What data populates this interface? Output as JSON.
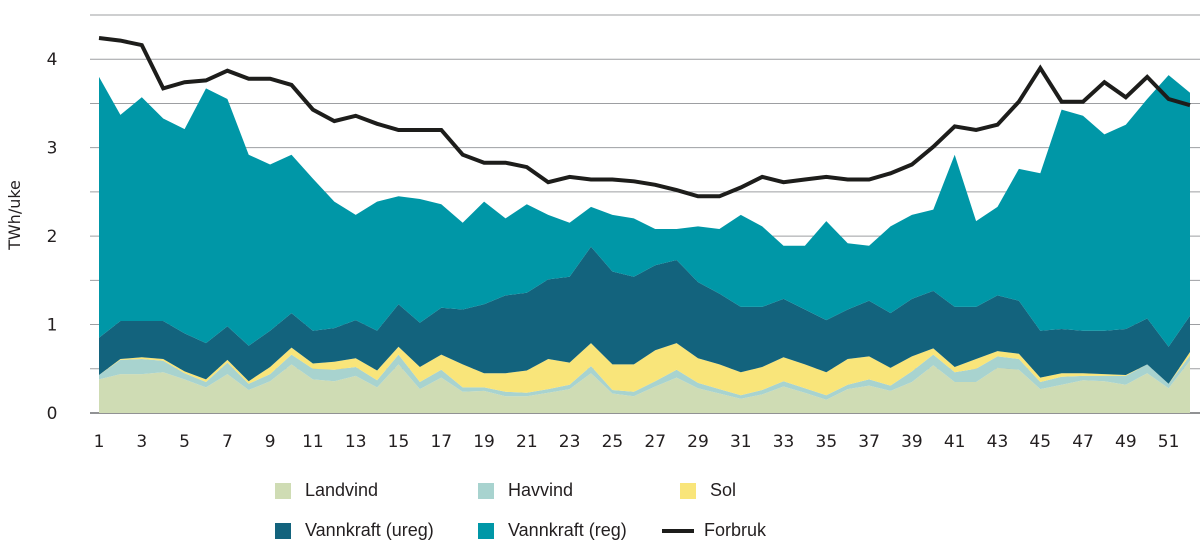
{
  "chart_data": {
    "type": "area",
    "stacked": true,
    "title": "",
    "xlabel": "",
    "ylabel": "TWh/uke",
    "ylim": [
      0,
      4.5
    ],
    "yticks": [
      0,
      1,
      2,
      3,
      4
    ],
    "grid_step": 0.5,
    "x": [
      1,
      2,
      3,
      4,
      5,
      6,
      7,
      8,
      9,
      10,
      11,
      12,
      13,
      14,
      15,
      16,
      17,
      18,
      19,
      20,
      21,
      22,
      23,
      24,
      25,
      26,
      27,
      28,
      29,
      30,
      31,
      32,
      33,
      34,
      35,
      36,
      37,
      38,
      39,
      40,
      41,
      42,
      43,
      44,
      45,
      46,
      47,
      48,
      49,
      50,
      51,
      52
    ],
    "xticks": [
      1,
      3,
      5,
      7,
      9,
      11,
      13,
      15,
      17,
      19,
      21,
      23,
      25,
      27,
      29,
      31,
      33,
      35,
      37,
      39,
      41,
      43,
      45,
      47,
      49,
      51
    ],
    "legend_position": "bottom",
    "series": [
      {
        "name": "Landvind",
        "kind": "area",
        "color": "#cfdcb4",
        "values": [
          0.38,
          0.44,
          0.44,
          0.46,
          0.38,
          0.29,
          0.44,
          0.26,
          0.36,
          0.55,
          0.38,
          0.36,
          0.42,
          0.29,
          0.55,
          0.27,
          0.4,
          0.24,
          0.25,
          0.19,
          0.19,
          0.23,
          0.27,
          0.45,
          0.22,
          0.19,
          0.3,
          0.4,
          0.28,
          0.22,
          0.16,
          0.21,
          0.3,
          0.23,
          0.15,
          0.27,
          0.31,
          0.25,
          0.35,
          0.54,
          0.35,
          0.35,
          0.51,
          0.49,
          0.27,
          0.32,
          0.37,
          0.36,
          0.32,
          0.45,
          0.28,
          0.59
        ]
      },
      {
        "name": "Havvind",
        "kind": "area",
        "color": "#a8d3cf",
        "values": [
          0.05,
          0.16,
          0.17,
          0.13,
          0.07,
          0.06,
          0.13,
          0.07,
          0.08,
          0.11,
          0.12,
          0.13,
          0.1,
          0.08,
          0.11,
          0.08,
          0.09,
          0.05,
          0.04,
          0.05,
          0.04,
          0.04,
          0.05,
          0.08,
          0.04,
          0.05,
          0.06,
          0.09,
          0.06,
          0.05,
          0.04,
          0.05,
          0.06,
          0.05,
          0.05,
          0.05,
          0.07,
          0.06,
          0.12,
          0.12,
          0.11,
          0.15,
          0.13,
          0.12,
          0.08,
          0.09,
          0.05,
          0.06,
          0.1,
          0.1,
          0.05,
          0.06
        ]
      },
      {
        "name": "Sol",
        "kind": "area",
        "color": "#f9e57a",
        "values": [
          0.0,
          0.01,
          0.02,
          0.02,
          0.02,
          0.03,
          0.03,
          0.03,
          0.08,
          0.08,
          0.06,
          0.09,
          0.1,
          0.11,
          0.09,
          0.17,
          0.17,
          0.26,
          0.16,
          0.21,
          0.25,
          0.34,
          0.25,
          0.26,
          0.29,
          0.31,
          0.35,
          0.3,
          0.28,
          0.28,
          0.26,
          0.26,
          0.27,
          0.27,
          0.26,
          0.29,
          0.26,
          0.2,
          0.17,
          0.07,
          0.06,
          0.11,
          0.06,
          0.06,
          0.05,
          0.04,
          0.03,
          0.02,
          0.01,
          0.0,
          0.0,
          0.04
        ]
      },
      {
        "name": "Vannkraft (ureg)",
        "kind": "area",
        "color": "#13637d",
        "values": [
          0.42,
          0.43,
          0.41,
          0.43,
          0.43,
          0.41,
          0.38,
          0.4,
          0.41,
          0.39,
          0.37,
          0.38,
          0.43,
          0.45,
          0.48,
          0.5,
          0.53,
          0.62,
          0.78,
          0.88,
          0.88,
          0.9,
          0.97,
          1.09,
          1.05,
          0.99,
          0.96,
          0.94,
          0.86,
          0.8,
          0.74,
          0.68,
          0.66,
          0.62,
          0.59,
          0.56,
          0.63,
          0.62,
          0.65,
          0.65,
          0.68,
          0.59,
          0.63,
          0.6,
          0.53,
          0.5,
          0.48,
          0.49,
          0.52,
          0.52,
          0.42,
          0.41
        ]
      },
      {
        "name": "Vannkraft (reg)",
        "kind": "area",
        "color": "#0097a7",
        "values": [
          2.95,
          2.33,
          2.53,
          2.29,
          2.31,
          2.88,
          2.57,
          2.16,
          1.88,
          1.79,
          1.72,
          1.43,
          1.19,
          1.46,
          1.22,
          1.4,
          1.17,
          0.98,
          1.16,
          0.87,
          1.0,
          0.73,
          0.61,
          0.45,
          0.64,
          0.66,
          0.41,
          0.35,
          0.63,
          0.73,
          1.04,
          0.91,
          0.6,
          0.72,
          1.12,
          0.75,
          0.62,
          0.98,
          0.95,
          0.92,
          1.72,
          0.97,
          1.0,
          1.49,
          1.78,
          2.48,
          2.43,
          2.22,
          2.31,
          2.48,
          3.07,
          2.52
        ]
      },
      {
        "name": "Forbruk",
        "kind": "line",
        "color": "#1d1d1b",
        "values": [
          4.24,
          4.21,
          4.16,
          3.67,
          3.74,
          3.76,
          3.87,
          3.78,
          3.78,
          3.71,
          3.43,
          3.3,
          3.36,
          3.27,
          3.2,
          3.2,
          3.2,
          2.92,
          2.83,
          2.83,
          2.78,
          2.61,
          2.67,
          2.64,
          2.64,
          2.62,
          2.58,
          2.52,
          2.45,
          2.45,
          2.55,
          2.67,
          2.61,
          2.64,
          2.67,
          2.64,
          2.64,
          2.71,
          2.81,
          3.01,
          3.24,
          3.2,
          3.26,
          3.52,
          3.9,
          3.52,
          3.52,
          3.74,
          3.57,
          3.8,
          3.55,
          3.48
        ]
      }
    ]
  },
  "legend": {
    "items": [
      {
        "label": "Landvind",
        "color": "#cfdcb4",
        "kind": "swatch"
      },
      {
        "label": "Havvind",
        "color": "#a8d3cf",
        "kind": "swatch"
      },
      {
        "label": "Sol",
        "color": "#f9e57a",
        "kind": "swatch"
      },
      {
        "label": "Vannkraft (ureg)",
        "color": "#13637d",
        "kind": "swatch"
      },
      {
        "label": "Vannkraft (reg)",
        "color": "#0097a7",
        "kind": "swatch"
      },
      {
        "label": "Forbruk",
        "color": "#1d1d1b",
        "kind": "line"
      }
    ]
  }
}
